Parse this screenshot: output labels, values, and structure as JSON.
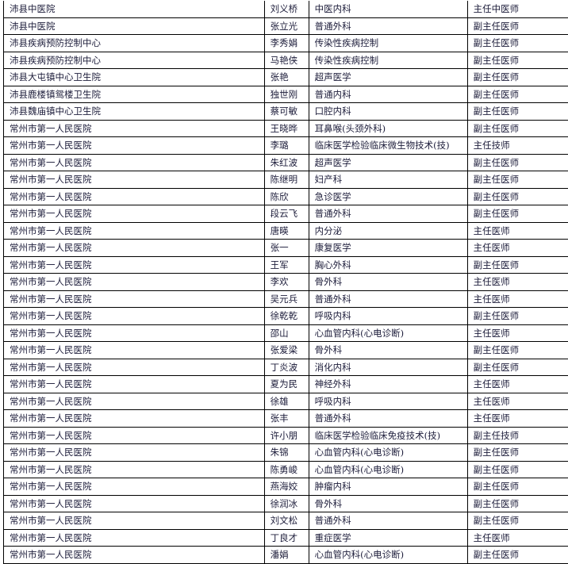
{
  "rows": [
    [
      "沛县中医院",
      "刘义桥",
      "中医内科",
      "主任中医师"
    ],
    [
      "沛县中医院",
      "张立光",
      "普通外科",
      "副主任医师"
    ],
    [
      "沛县疾病预防控制中心",
      "李秀娟",
      "传染性疾病控制",
      "副主任医师"
    ],
    [
      "沛县疾病预防控制中心",
      "马艳侠",
      "传染性疾病控制",
      "副主任医师"
    ],
    [
      "沛县大屯镇中心卫生院",
      "张艳",
      "超声医学",
      "副主任医师"
    ],
    [
      "沛县鹿楼镇鸳楼卫生院",
      "独世刚",
      "普通内科",
      "副主任医师"
    ],
    [
      "沛县魏庙镇中心卫生院",
      "蔡可敏",
      "口腔内科",
      "副主任医师"
    ],
    [
      "常州市第一人民医院",
      "王晓晔",
      "耳鼻喉(头颈外科)",
      "副主任医师"
    ],
    [
      "常州市第一人民医院",
      "李璐",
      "临床医学检验临床微生物技术(技)",
      "主任技师"
    ],
    [
      "常州市第一人民医院",
      "朱红波",
      "超声医学",
      "副主任医师"
    ],
    [
      "常州市第一人民医院",
      "陈继明",
      "妇产科",
      "副主任医师"
    ],
    [
      "常州市第一人民医院",
      "陈欣",
      "急诊医学",
      "副主任医师"
    ],
    [
      "常州市第一人民医院",
      "段云飞",
      "普通外科",
      "副主任医师"
    ],
    [
      "常州市第一人民医院",
      "唐暎",
      "内分泌",
      "主任医师"
    ],
    [
      "常州市第一人民医院",
      "张一",
      "康复医学",
      "主任医师"
    ],
    [
      "常州市第一人民医院",
      "王军",
      "胸心外科",
      "副主任医师"
    ],
    [
      "常州市第一人民医院",
      "李欢",
      "骨外科",
      "主任医师"
    ],
    [
      "常州市第一人民医院",
      "吴元兵",
      "普通外科",
      "主任医师"
    ],
    [
      "常州市第一人民医院",
      "徐乾乾",
      "呼吸内科",
      "副主任医师"
    ],
    [
      "常州市第一人民医院",
      "邵山",
      "心血管内科(心电诊断)",
      "主任医师"
    ],
    [
      "常州市第一人民医院",
      "张爱梁",
      "骨外科",
      "副主任医师"
    ],
    [
      "常州市第一人民医院",
      "丁炎波",
      "消化内科",
      "副主任医师"
    ],
    [
      "常州市第一人民医院",
      "夏为民",
      "神经外科",
      "主任医师"
    ],
    [
      "常州市第一人民医院",
      "徐雄",
      "呼吸内科",
      "主任医师"
    ],
    [
      "常州市第一人民医院",
      "张丰",
      "普通外科",
      "主任医师"
    ],
    [
      "常州市第一人民医院",
      "许小朋",
      "临床医学检验临床免疫技术(技)",
      "副主任技师"
    ],
    [
      "常州市第一人民医院",
      "朱锦",
      "心血管内科(心电诊断)",
      "副主任医师"
    ],
    [
      "常州市第一人民医院",
      "陈勇峻",
      "心血管内科(心电诊断)",
      "副主任医师"
    ],
    [
      "常州市第一人民医院",
      "燕海姣",
      "肿瘤内科",
      "副主任医师"
    ],
    [
      "常州市第一人民医院",
      "徐润冰",
      "骨外科",
      "副主任医师"
    ],
    [
      "常州市第一人民医院",
      "刘文松",
      "普通外科",
      "副主任医师"
    ],
    [
      "常州市第一人民医院",
      "丁良才",
      "重症医学",
      "主任医师"
    ],
    [
      "常州市第一人民医院",
      "潘娟",
      "心血管内科(心电诊断)",
      "副主任医师"
    ]
  ]
}
